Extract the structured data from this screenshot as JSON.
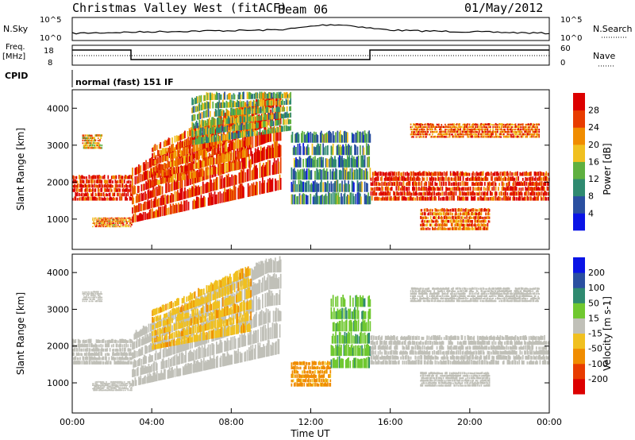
{
  "header": {
    "station": "Christmas Valley West (fitACF)",
    "beam": "Beam 06",
    "date": "01/May/2012"
  },
  "top_panel": {
    "nsky_label": "N.Sky",
    "nsearch_label": "N.Search",
    "log_tick_high": "10^5",
    "log_tick_low": "10^0",
    "freq_label_1": "Freq.",
    "freq_label_2": "[MHz]",
    "freq_ticks": [
      "18",
      "8"
    ],
    "nave_label": "Nave",
    "nave_ticks": [
      "60",
      "0"
    ],
    "cpid_label": "CPID",
    "cpid_value": "normal (fast) 151 IF"
  },
  "chart_data": [
    {
      "type": "heatmap",
      "title": "",
      "ylabel": "Slant Range [km]",
      "xlabel": "",
      "x_ticks": [
        "00:00",
        "04:00",
        "08:00",
        "12:00",
        "16:00",
        "20:00",
        "00:00"
      ],
      "y_ticks": [
        1000,
        2000,
        3000,
        4000
      ],
      "ylim": [
        180,
        4500
      ],
      "colorbar": {
        "label": "Power [dB]",
        "ticks": [
          4,
          8,
          12,
          16,
          20,
          24,
          28
        ],
        "colors": [
          "#0a14e6",
          "#2a4fa0",
          "#2f8a70",
          "#5fb040",
          "#f0c020",
          "#f08c00",
          "#e83c00",
          "#dc0000"
        ]
      },
      "echo_bands": [
        {
          "t0": 0.0,
          "t1": 3.0,
          "r0": 1500,
          "r1": 2200,
          "level": 28
        },
        {
          "t0": 0.5,
          "t1": 1.5,
          "r0": 2900,
          "r1": 3300,
          "level": 20
        },
        {
          "t0": 1.0,
          "t1": 3.0,
          "r0": 780,
          "r1": 1050,
          "level": 22
        },
        {
          "t0": 3.0,
          "t1": 10.5,
          "r0": 900,
          "r1": 2400,
          "level": 28,
          "slope": 300
        },
        {
          "t0": 4.0,
          "t1": 9.0,
          "r0": 1900,
          "r1": 3000,
          "level": 24,
          "slope": 250
        },
        {
          "t0": 6.0,
          "t1": 11.0,
          "r0": 3000,
          "r1": 4300,
          "level": 14,
          "slope": 200
        },
        {
          "t0": 11.0,
          "t1": 15.0,
          "r0": 1400,
          "r1": 3400,
          "level": 10
        },
        {
          "t0": 15.0,
          "t1": 24.0,
          "r0": 1500,
          "r1": 2300,
          "level": 28
        },
        {
          "t0": 17.5,
          "t1": 21.0,
          "r0": 700,
          "r1": 1300,
          "level": 24
        },
        {
          "t0": 17.0,
          "t1": 23.5,
          "r0": 3200,
          "r1": 3600,
          "level": 24
        }
      ]
    },
    {
      "type": "heatmap",
      "title": "",
      "ylabel": "Slant Range [km]",
      "xlabel": "Time UT",
      "x_ticks": [
        "00:00",
        "04:00",
        "08:00",
        "12:00",
        "16:00",
        "20:00",
        "00:00"
      ],
      "y_ticks": [
        1000,
        2000,
        3000,
        4000
      ],
      "ylim": [
        180,
        4500
      ],
      "colorbar": {
        "label": "Velocity [m s-1]",
        "ticks": [
          200,
          100,
          50,
          15,
          -15,
          -50,
          -100,
          -200
        ],
        "colors": [
          "#0a14e6",
          "#2a4fa0",
          "#2f8a70",
          "#70c830",
          "#c0c0b8",
          "#f0c020",
          "#f08c00",
          "#e83c00",
          "#dc0000"
        ]
      },
      "echo_bands": [
        {
          "t0": 0.0,
          "t1": 3.0,
          "r0": 1500,
          "r1": 2200,
          "level": 0
        },
        {
          "t0": 0.5,
          "t1": 1.5,
          "r0": 3200,
          "r1": 3500,
          "level": 0
        },
        {
          "t0": 1.0,
          "t1": 3.0,
          "r0": 780,
          "r1": 1050,
          "level": 0
        },
        {
          "t0": 3.0,
          "t1": 10.5,
          "r0": 900,
          "r1": 2400,
          "level": 0,
          "slope": 300
        },
        {
          "t0": 4.0,
          "t1": 9.0,
          "r0": 1900,
          "r1": 3000,
          "level": -40,
          "slope": 250
        },
        {
          "t0": 11.0,
          "t1": 13.0,
          "r0": 900,
          "r1": 1600,
          "level": -60
        },
        {
          "t0": 13.0,
          "t1": 15.0,
          "r0": 1400,
          "r1": 3400,
          "level": 40
        },
        {
          "t0": 15.0,
          "t1": 24.0,
          "r0": 1500,
          "r1": 2300,
          "level": 0
        },
        {
          "t0": 17.5,
          "t1": 21.0,
          "r0": 900,
          "r1": 1300,
          "level": 0
        },
        {
          "t0": 17.0,
          "t1": 23.5,
          "r0": 3200,
          "r1": 3600,
          "level": 0
        }
      ]
    }
  ]
}
